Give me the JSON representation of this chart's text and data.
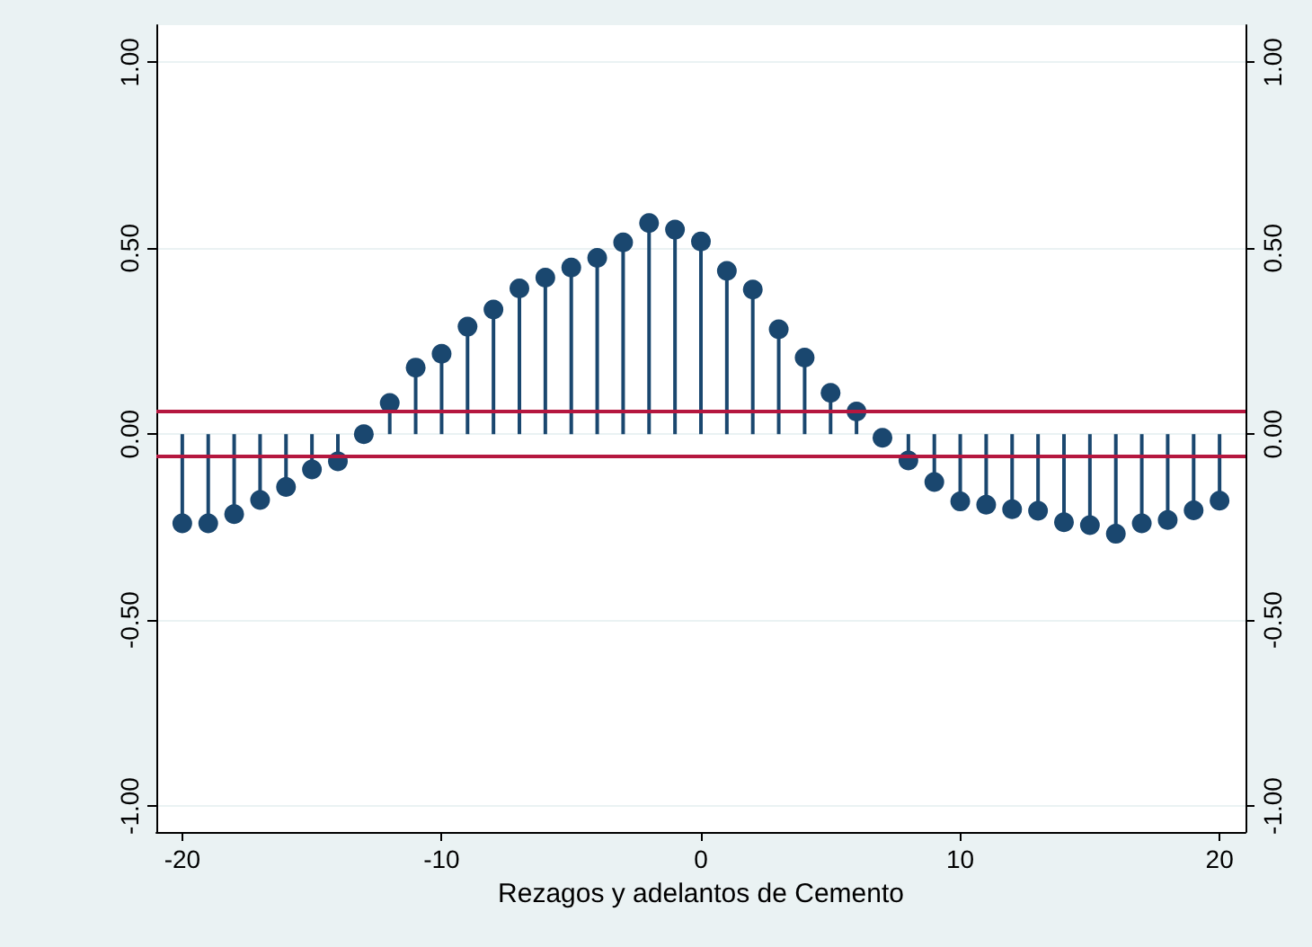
{
  "chart_data": {
    "type": "lollipop",
    "xlabel": "Rezagos y adelantos de Cemento",
    "x": [
      -20,
      -19,
      -18,
      -17,
      -16,
      -15,
      -14,
      -13,
      -12,
      -11,
      -10,
      -9,
      -8,
      -7,
      -6,
      -5,
      -4,
      -3,
      -2,
      -1,
      0,
      1,
      2,
      3,
      4,
      5,
      6,
      7,
      8,
      9,
      10,
      11,
      12,
      13,
      14,
      15,
      16,
      17,
      18,
      19,
      20
    ],
    "series": [
      {
        "color": "#1a476f",
        "values": [
          -0.24,
          -0.24,
          -0.215,
          -0.177,
          -0.142,
          -0.095,
          -0.073,
          0.0,
          0.084,
          0.179,
          0.216,
          0.289,
          0.335,
          0.392,
          0.421,
          0.448,
          0.474,
          0.516,
          0.568,
          0.55,
          0.518,
          0.439,
          0.389,
          0.282,
          0.206,
          0.111,
          0.061,
          -0.01,
          -0.071,
          -0.129,
          -0.181,
          -0.19,
          -0.202,
          -0.206,
          -0.237,
          -0.245,
          -0.268,
          -0.24,
          -0.231,
          -0.205,
          -0.179
        ]
      }
    ],
    "xlim": [
      -21,
      21
    ],
    "xticks": [
      -20,
      -10,
      0,
      10,
      20
    ],
    "ylim": [
      -1.07,
      1.1
    ],
    "yticks": [
      {
        "value": -1,
        "label": "-1.00"
      },
      {
        "value": -0.5,
        "label": "-0.50"
      },
      {
        "value": 0,
        "label": "0.00"
      },
      {
        "value": 0.5,
        "label": "0.50"
      },
      {
        "value": 1,
        "label": "1.00"
      }
    ],
    "y2lim": [
      -1.07,
      1.1
    ],
    "y2ticks": [
      {
        "value": -1,
        "label": "-1.00"
      },
      {
        "value": -0.5,
        "label": "-0.50"
      },
      {
        "value": 0,
        "label": "0.00"
      },
      {
        "value": 0.5,
        "label": "0.50"
      },
      {
        "value": 1,
        "label": "1.00"
      }
    ],
    "ref_lines": [
      {
        "axis": "y",
        "value": 0.058,
        "color": "#b5173f"
      },
      {
        "axis": "y",
        "value": -0.058,
        "color": "#b5173f"
      }
    ],
    "grid": "y",
    "marker": "circle"
  }
}
